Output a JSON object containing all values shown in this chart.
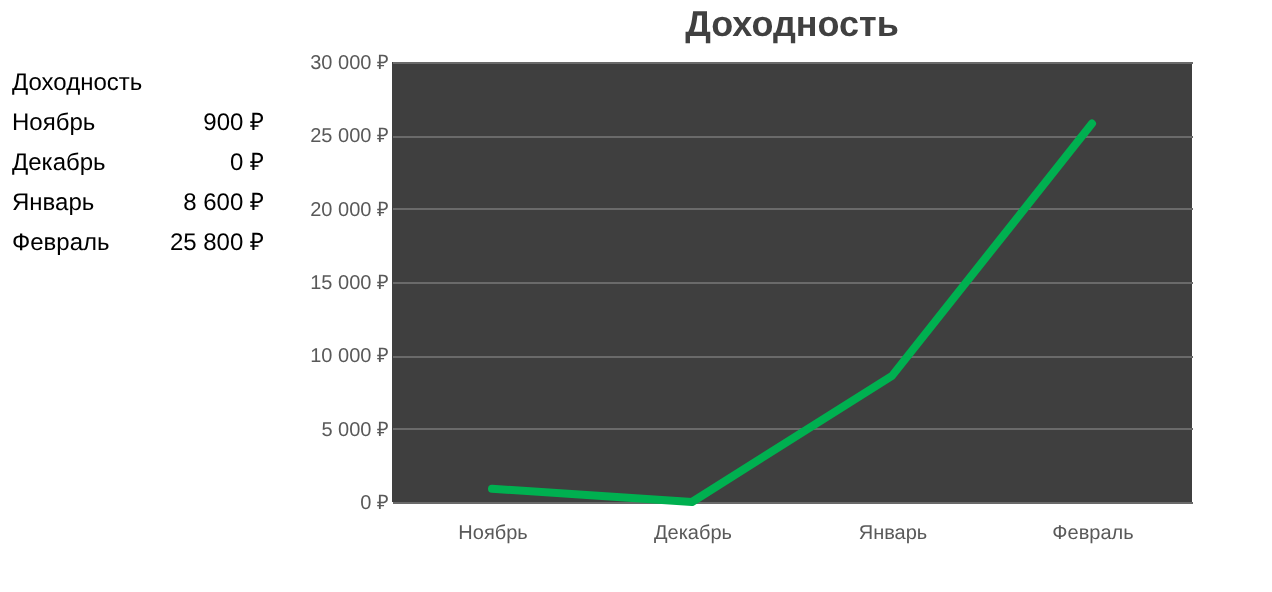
{
  "chart_data": {
    "type": "line",
    "title": "Доходность",
    "categories": [
      "Ноябрь",
      "Декабрь",
      "Январь",
      "Февраль"
    ],
    "series": [
      {
        "color": "#00b050",
        "values": [
          900,
          0,
          8600,
          25800
        ]
      }
    ],
    "value_labels": [
      "900 ₽",
      "0 ₽",
      "8 600 ₽",
      "25 800 ₽"
    ],
    "data_labels": false,
    "annotations": [
      "Доходность"
    ],
    "ylim": [
      0,
      30000
    ],
    "yticks": [
      {
        "value": 0,
        "label": "0 ₽"
      },
      {
        "value": 5000,
        "label": "5 000 ₽"
      },
      {
        "value": 10000,
        "label": "10 000 ₽"
      },
      {
        "value": 15000,
        "label": "15 000 ₽"
      },
      {
        "value": 20000,
        "label": "20 000 ₽"
      },
      {
        "value": 25000,
        "label": "25 000 ₽"
      },
      {
        "value": 30000,
        "label": "30 000 ₽"
      }
    ],
    "grid": "y",
    "marker": "none",
    "line_style": "solid"
  }
}
